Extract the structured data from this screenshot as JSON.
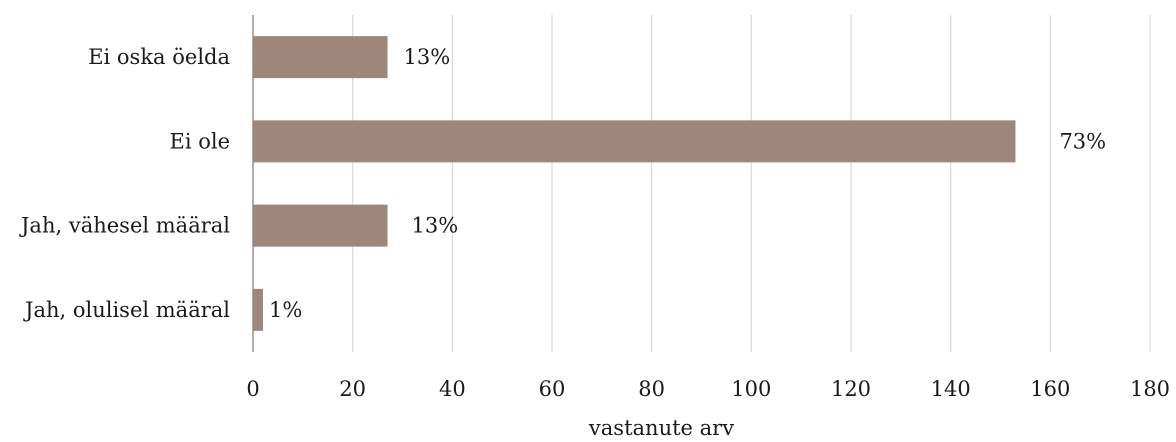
{
  "chart_data": {
    "type": "bar",
    "orientation": "horizontal",
    "categories": [
      "Ei oska öelda",
      "Ei ole",
      "Jah, vähesel määral",
      "Jah, olulisel määral"
    ],
    "values": [
      27,
      153,
      27,
      2
    ],
    "data_labels": [
      "13%",
      "73%",
      "13%",
      "1%"
    ],
    "xlabel": "vastanute arv",
    "ylabel": "",
    "xlim": [
      0,
      180
    ],
    "xticks": [
      0,
      20,
      40,
      60,
      80,
      100,
      120,
      140,
      160,
      180
    ],
    "grid": true,
    "legend": "none",
    "bar_color": "#9e8778"
  }
}
